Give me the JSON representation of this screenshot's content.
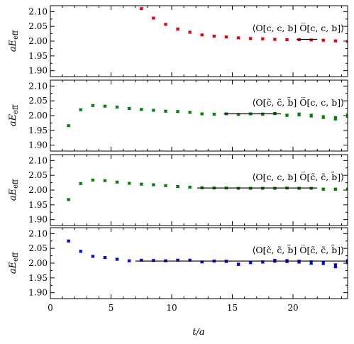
{
  "chart_data": {
    "type": "scatter",
    "x_axis": {
      "label": "t/a",
      "range": [
        0,
        24.5
      ],
      "ticks": [
        0,
        5,
        10,
        15,
        20
      ],
      "tick_labels": [
        "0",
        "5",
        "10",
        "15",
        "20"
      ]
    },
    "y_axis": {
      "label_main": "aE",
      "label_sub": "eff",
      "range": [
        1.88,
        2.12
      ],
      "ticks": [
        1.9,
        1.95,
        2.0,
        2.05,
        2.1
      ],
      "tick_labels": [
        "1.90",
        "1.95",
        "2.00",
        "2.05",
        "2.10"
      ]
    },
    "panels": [
      {
        "annotation": "⟨O[c, c, b] O̅[c, c, b]⟩",
        "color": "#e00000",
        "points": [
          {
            "x": 7.5,
            "y": 2.11,
            "err": 0.001
          },
          {
            "x": 8.5,
            "y": 2.078,
            "err": 0.001
          },
          {
            "x": 9.5,
            "y": 2.057,
            "err": 0.001
          },
          {
            "x": 10.5,
            "y": 2.041,
            "err": 0.001
          },
          {
            "x": 11.5,
            "y": 2.03,
            "err": 0.001
          },
          {
            "x": 12.5,
            "y": 2.021,
            "err": 0.001
          },
          {
            "x": 13.5,
            "y": 2.017,
            "err": 0.001
          },
          {
            "x": 14.5,
            "y": 2.014,
            "err": 0.001
          },
          {
            "x": 15.5,
            "y": 2.011,
            "err": 0.001
          },
          {
            "x": 16.5,
            "y": 2.009,
            "err": 0.001
          },
          {
            "x": 17.5,
            "y": 2.008,
            "err": 0.001
          },
          {
            "x": 18.5,
            "y": 2.006,
            "err": 0.001
          },
          {
            "x": 19.5,
            "y": 2.005,
            "err": 0.001
          },
          {
            "x": 20.5,
            "y": 2.005,
            "err": 0.002
          },
          {
            "x": 21.5,
            "y": 2.004,
            "err": 0.002
          },
          {
            "x": 22.5,
            "y": 2.003,
            "err": 0.002
          },
          {
            "x": 23.5,
            "y": 2.001,
            "err": 0.002
          },
          {
            "x": 24.5,
            "y": 1.999,
            "err": 0.002
          }
        ],
        "fit": {
          "x_start": 20.3,
          "x_end": 22.0,
          "y": 2.006
        }
      },
      {
        "annotation": "⟨O[c̃, c̃, b̃] O̅[c, c, b]⟩",
        "color": "#008000",
        "points": [
          {
            "x": 1.5,
            "y": 1.966,
            "err": 0.002
          },
          {
            "x": 2.5,
            "y": 2.02,
            "err": 0.002
          },
          {
            "x": 3.5,
            "y": 2.034,
            "err": 0.002
          },
          {
            "x": 4.5,
            "y": 2.032,
            "err": 0.002
          },
          {
            "x": 5.5,
            "y": 2.029,
            "err": 0.002
          },
          {
            "x": 6.5,
            "y": 2.024,
            "err": 0.002
          },
          {
            "x": 7.5,
            "y": 2.021,
            "err": 0.002
          },
          {
            "x": 8.5,
            "y": 2.018,
            "err": 0.002
          },
          {
            "x": 9.5,
            "y": 2.015,
            "err": 0.002
          },
          {
            "x": 10.5,
            "y": 2.014,
            "err": 0.002
          },
          {
            "x": 11.5,
            "y": 2.011,
            "err": 0.002
          },
          {
            "x": 12.5,
            "y": 2.006,
            "err": 0.003
          },
          {
            "x": 13.5,
            "y": 2.005,
            "err": 0.003
          },
          {
            "x": 14.5,
            "y": 2.006,
            "err": 0.003
          },
          {
            "x": 15.5,
            "y": 2.004,
            "err": 0.003
          },
          {
            "x": 16.5,
            "y": 2.006,
            "err": 0.003
          },
          {
            "x": 17.5,
            "y": 2.005,
            "err": 0.004
          },
          {
            "x": 18.5,
            "y": 2.007,
            "err": 0.004
          },
          {
            "x": 19.5,
            "y": 2.001,
            "err": 0.004
          },
          {
            "x": 20.5,
            "y": 2.004,
            "err": 0.005
          },
          {
            "x": 21.5,
            "y": 2.0,
            "err": 0.005
          },
          {
            "x": 22.5,
            "y": 1.995,
            "err": 0.005
          },
          {
            "x": 23.5,
            "y": 1.991,
            "err": 0.006
          },
          {
            "x": 24.5,
            "y": 2.0,
            "err": 0.006
          }
        ],
        "fit": {
          "x_start": 14.3,
          "x_end": 19.0,
          "y": 2.006
        }
      },
      {
        "annotation": "⟨O[c, c, b] O̅[c̃, c̃, b̃]⟩",
        "color": "#008000",
        "points": [
          {
            "x": 1.5,
            "y": 1.968,
            "err": 0.002
          },
          {
            "x": 2.5,
            "y": 2.022,
            "err": 0.002
          },
          {
            "x": 3.5,
            "y": 2.034,
            "err": 0.002
          },
          {
            "x": 4.5,
            "y": 2.032,
            "err": 0.002
          },
          {
            "x": 5.5,
            "y": 2.027,
            "err": 0.002
          },
          {
            "x": 6.5,
            "y": 2.023,
            "err": 0.002
          },
          {
            "x": 7.5,
            "y": 2.02,
            "err": 0.002
          },
          {
            "x": 8.5,
            "y": 2.018,
            "err": 0.002
          },
          {
            "x": 9.5,
            "y": 2.015,
            "err": 0.002
          },
          {
            "x": 10.5,
            "y": 2.012,
            "err": 0.002
          },
          {
            "x": 11.5,
            "y": 2.01,
            "err": 0.002
          },
          {
            "x": 12.5,
            "y": 2.008,
            "err": 0.002
          },
          {
            "x": 13.5,
            "y": 2.007,
            "err": 0.002
          },
          {
            "x": 14.5,
            "y": 2.007,
            "err": 0.002
          },
          {
            "x": 15.5,
            "y": 2.006,
            "err": 0.003
          },
          {
            "x": 16.5,
            "y": 2.006,
            "err": 0.003
          },
          {
            "x": 17.5,
            "y": 2.006,
            "err": 0.003
          },
          {
            "x": 18.5,
            "y": 2.006,
            "err": 0.003
          },
          {
            "x": 19.5,
            "y": 2.007,
            "err": 0.003
          },
          {
            "x": 20.5,
            "y": 2.006,
            "err": 0.003
          },
          {
            "x": 21.5,
            "y": 2.006,
            "err": 0.003
          },
          {
            "x": 22.5,
            "y": 2.003,
            "err": 0.004
          },
          {
            "x": 23.5,
            "y": 2.003,
            "err": 0.004
          },
          {
            "x": 24.5,
            "y": 2.003,
            "err": 0.004
          }
        ],
        "fit": {
          "x_start": 12.1,
          "x_end": 22.0,
          "y": 2.007
        }
      },
      {
        "annotation": "⟨O[c̃, c̃, b̃] O̅[c̃, c̃, b̃]⟩",
        "color": "#0000e6",
        "points": [
          {
            "x": 1.5,
            "y": 2.075,
            "err": 0.002
          },
          {
            "x": 2.5,
            "y": 2.04,
            "err": 0.002
          },
          {
            "x": 3.5,
            "y": 2.023,
            "err": 0.002
          },
          {
            "x": 4.5,
            "y": 2.019,
            "err": 0.002
          },
          {
            "x": 5.5,
            "y": 2.013,
            "err": 0.002
          },
          {
            "x": 6.5,
            "y": 2.008,
            "err": 0.002
          },
          {
            "x": 7.5,
            "y": 2.01,
            "err": 0.002
          },
          {
            "x": 8.5,
            "y": 2.009,
            "err": 0.002
          },
          {
            "x": 9.5,
            "y": 2.008,
            "err": 0.002
          },
          {
            "x": 10.5,
            "y": 2.01,
            "err": 0.003
          },
          {
            "x": 11.5,
            "y": 2.01,
            "err": 0.003
          },
          {
            "x": 12.5,
            "y": 2.004,
            "err": 0.003
          },
          {
            "x": 13.5,
            "y": 2.007,
            "err": 0.003
          },
          {
            "x": 14.5,
            "y": 2.006,
            "err": 0.004
          },
          {
            "x": 15.5,
            "y": 1.996,
            "err": 0.004
          },
          {
            "x": 16.5,
            "y": 2.002,
            "err": 0.004
          },
          {
            "x": 17.5,
            "y": 2.004,
            "err": 0.004
          },
          {
            "x": 18.5,
            "y": 2.008,
            "err": 0.005
          },
          {
            "x": 19.5,
            "y": 2.007,
            "err": 0.005
          },
          {
            "x": 20.5,
            "y": 2.005,
            "err": 0.005
          },
          {
            "x": 21.5,
            "y": 2.002,
            "err": 0.006
          },
          {
            "x": 22.5,
            "y": 2.001,
            "err": 0.006
          },
          {
            "x": 23.5,
            "y": 1.991,
            "err": 0.007
          },
          {
            "x": 24.5,
            "y": 2.005,
            "err": 0.007
          }
        ],
        "fit": {
          "x_start": 7.0,
          "x_end": 24.5,
          "y": 2.007
        }
      }
    ]
  }
}
